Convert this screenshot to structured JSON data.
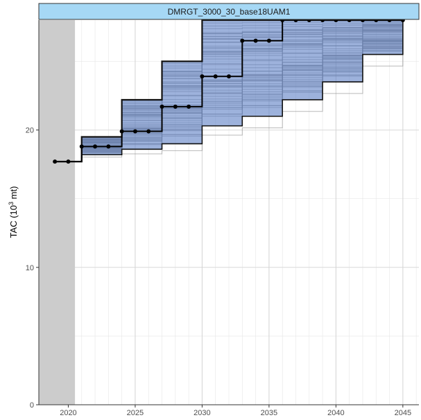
{
  "chart_data": {
    "type": "line",
    "panel_title": "DMRGT_3000_30_base18UAM1",
    "ylabel": "TAC (10",
    "ylabel_sup": "3",
    "ylabel_tail": " mt)",
    "xlim": [
      2017.8,
      2046.2
    ],
    "ylim": [
      0,
      28.0
    ],
    "x_ticks": [
      2020,
      2025,
      2030,
      2035,
      2040,
      2045
    ],
    "y_ticks": [
      0,
      10,
      20
    ],
    "historical_period": [
      2017.8,
      2020.5
    ],
    "median": {
      "x": [
        2019,
        2020,
        2021,
        2022,
        2023,
        2024,
        2025,
        2026,
        2027,
        2028,
        2029,
        2030,
        2031,
        2032,
        2033,
        2034,
        2035,
        2036,
        2037,
        2038,
        2039,
        2040,
        2041,
        2042,
        2043,
        2044,
        2045
      ],
      "y": [
        17.7,
        17.7,
        18.8,
        18.8,
        18.8,
        19.9,
        19.9,
        19.9,
        21.7,
        21.7,
        21.7,
        23.9,
        23.9,
        23.9,
        26.5,
        26.5,
        26.5,
        28.0,
        28.0,
        28.0,
        28.0,
        28.0,
        28.0,
        28.0,
        28.0,
        28.0,
        28.0
      ]
    },
    "band_lower": [
      17.7,
      17.7,
      18.2,
      18.2,
      18.2,
      18.6,
      18.6,
      18.6,
      19.0,
      19.0,
      19.0,
      20.3,
      20.3,
      20.3,
      21.0,
      21.0,
      21.0,
      22.2,
      22.2,
      22.2,
      23.5,
      23.5,
      23.5,
      25.5,
      25.5,
      25.5,
      28.0
    ],
    "band_upper": [
      17.7,
      17.7,
      19.5,
      19.5,
      19.5,
      22.2,
      22.2,
      22.2,
      25.0,
      25.0,
      25.0,
      28.0,
      28.0,
      28.0,
      28.0,
      28.0,
      28.0,
      28.0,
      28.0,
      28.0,
      28.0,
      28.0,
      28.0,
      28.0,
      28.0,
      28.0,
      28.0
    ],
    "sample_count": 60,
    "colors": {
      "band": "#5b7fc4",
      "band_dark": "#1f3a7a",
      "median": "#000000",
      "traces": "#7f7f7f",
      "historical": "#cccccc",
      "strip": "#a6d8f5",
      "grid": "#ebebeb"
    },
    "grid": true
  }
}
